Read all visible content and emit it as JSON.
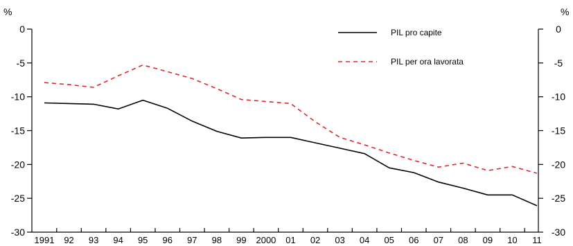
{
  "chart_data": {
    "type": "line",
    "title": "",
    "xlabel": "",
    "ylabel": "%",
    "ylabel_right": "%",
    "ylim": [
      -30,
      0
    ],
    "yticks": [
      0,
      -5,
      -10,
      -15,
      -20,
      -25,
      -30
    ],
    "grid": false,
    "legend_position": "top-right",
    "categories": [
      "1991",
      "92",
      "93",
      "94",
      "95",
      "96",
      "97",
      "98",
      "99",
      "2000",
      "01",
      "02",
      "03",
      "04",
      "05",
      "06",
      "07",
      "08",
      "09",
      "10",
      "11"
    ],
    "series": [
      {
        "name": "PIL pro capite",
        "color": "#000000",
        "style": "solid",
        "values": [
          -10.9,
          -11.0,
          -11.1,
          -11.8,
          -10.5,
          -11.7,
          -13.6,
          -15.1,
          -16.1,
          -16.0,
          -16.0,
          -16.8,
          -17.6,
          -18.4,
          -20.5,
          -21.2,
          -22.6,
          -23.5,
          -24.5,
          -24.5,
          -26.1
        ]
      },
      {
        "name": "PIL per ora lavorata",
        "color": "#e3242b",
        "style": "dashed",
        "values": [
          -7.9,
          -8.2,
          -8.6,
          -6.9,
          -5.3,
          -6.3,
          -7.3,
          -8.8,
          -10.4,
          -10.7,
          -11.0,
          -13.7,
          -16.0,
          -17.1,
          -18.3,
          -19.4,
          -20.4,
          -19.8,
          -20.9,
          -20.3,
          -21.3
        ]
      }
    ]
  }
}
